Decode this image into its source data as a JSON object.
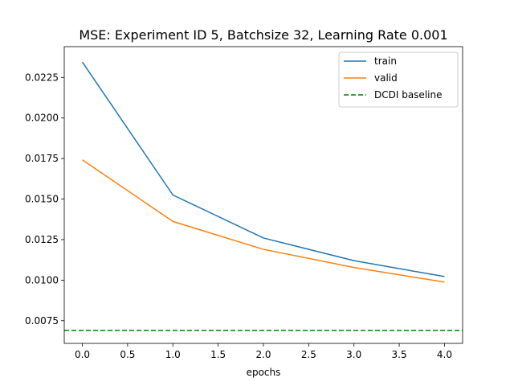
{
  "chart_data": {
    "type": "line",
    "title": "MSE: Experiment ID 5, Batchsize 32, Learning Rate 0.001",
    "xlabel": "epochs",
    "ylabel": "",
    "xlim": [
      -0.2,
      4.2
    ],
    "ylim": [
      0.0061,
      0.0244
    ],
    "x_ticks": [
      0.0,
      0.5,
      1.0,
      1.5,
      2.0,
      2.5,
      3.0,
      3.5,
      4.0
    ],
    "x_tick_labels": [
      "0.0",
      "0.5",
      "1.0",
      "1.5",
      "2.0",
      "2.5",
      "3.0",
      "3.5",
      "4.0"
    ],
    "y_ticks": [
      0.0075,
      0.01,
      0.0125,
      0.015,
      0.0175,
      0.02,
      0.0225
    ],
    "y_tick_labels": [
      "0.0075",
      "0.0100",
      "0.0125",
      "0.0150",
      "0.0175",
      "0.0200",
      "0.0225"
    ],
    "grid": false,
    "legend_position": "top-right",
    "x": [
      0,
      1,
      2,
      3,
      4
    ],
    "series": [
      {
        "name": "train",
        "color": "#1f77b4",
        "style": "solid",
        "values": [
          0.02345,
          0.01525,
          0.0126,
          0.0112,
          0.01022
        ]
      },
      {
        "name": "valid",
        "color": "#ff7f0e",
        "style": "solid",
        "values": [
          0.01742,
          0.01362,
          0.0119,
          0.01078,
          0.00988
        ]
      }
    ],
    "baselines": [
      {
        "name": "DCDI baseline",
        "color": "#008000",
        "style": "dashed",
        "value": 0.0069
      }
    ]
  }
}
